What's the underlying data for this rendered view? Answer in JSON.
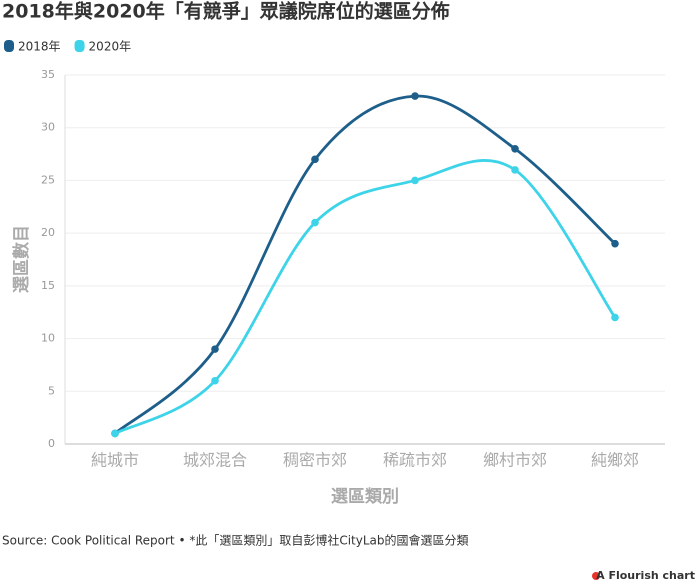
{
  "chart_data": {
    "type": "line",
    "title": "2018年與2020年「有競爭」眾議院席位的選區分佈",
    "x_label": "選區類別",
    "y_label": "選區數目",
    "categories": [
      "純城市",
      "城郊混合",
      "稠密市郊",
      "稀疏市郊",
      "鄉村市郊",
      "純鄉郊"
    ],
    "series": [
      {
        "name": "2018年",
        "color": "#1d5f8a",
        "values": [
          1,
          9,
          27,
          33,
          28,
          19
        ]
      },
      {
        "name": "2020年",
        "color": "#3dd3e8",
        "values": [
          1,
          6,
          21,
          25,
          26,
          12
        ]
      }
    ],
    "ylim": [
      0,
      35
    ],
    "yticks": [
      0,
      5,
      10,
      15,
      20,
      25,
      30,
      35
    ],
    "grid": true,
    "source": "Source: Cook Political Report • *此「選區類別」取自彭博社CityLab的國會選區分類",
    "credit": "A Flourish chart"
  }
}
